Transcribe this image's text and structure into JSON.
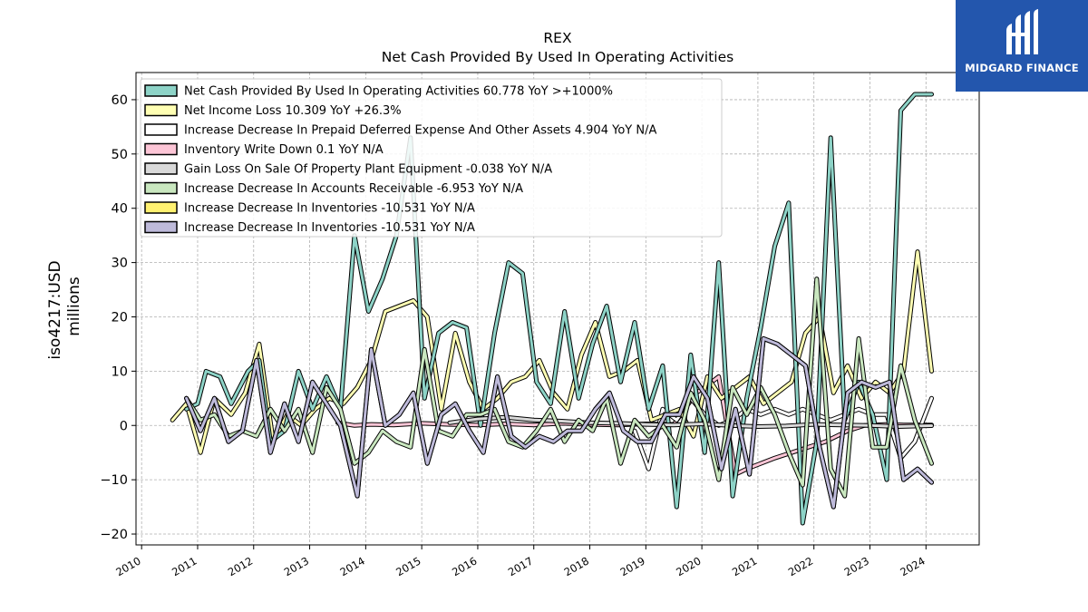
{
  "chart_data": {
    "type": "line",
    "title": "REX",
    "subtitle": "Net Cash Provided By Used In Operating Activities",
    "ylabel": "iso4217:USD",
    "ylabel2": "millions",
    "xlabel": "",
    "ylim": [
      -22,
      65
    ],
    "xlim": [
      2009.9,
      2024.95
    ],
    "y_ticks": [
      -20,
      -10,
      0,
      10,
      20,
      30,
      40,
      50,
      60
    ],
    "x_ticks": [
      2010,
      2011,
      2012,
      2013,
      2014,
      2015,
      2016,
      2017,
      2018,
      2019,
      2020,
      2021,
      2022,
      2023,
      2024
    ],
    "grid": true,
    "legend_position": "top-left",
    "series": [
      {
        "name": "Net Cash Provided By Used In Operating Activities",
        "legend": "Net Cash Provided By Used In Operating Activities  60.778 YoY >+1000%",
        "color": "#8dd3c7",
        "z": 3,
        "x": [
          2010.8,
          2011.0,
          2011.15,
          2011.4,
          2011.6,
          2011.9,
          2012.1,
          2012.3,
          2012.55,
          2012.8,
          2013.05,
          2013.3,
          2013.55,
          2013.8,
          2014.05,
          2014.3,
          2014.55,
          2014.8,
          2015.05,
          2015.3,
          2015.55,
          2015.8,
          2016.05,
          2016.3,
          2016.55,
          2016.8,
          2017.05,
          2017.3,
          2017.55,
          2017.8,
          2018.05,
          2018.3,
          2018.55,
          2018.8,
          2019.05,
          2019.3,
          2019.55,
          2019.8,
          2020.05,
          2020.3,
          2020.55,
          2020.8,
          2021.05,
          2021.3,
          2021.55,
          2021.8,
          2022.05,
          2022.3,
          2022.55,
          2022.8,
          2023.05,
          2023.3,
          2023.55,
          2023.8,
          2024.1
        ],
        "values": [
          3,
          4,
          10,
          9,
          4,
          10,
          12,
          -3,
          -1,
          10,
          3,
          9,
          3,
          35,
          21,
          27,
          35,
          53,
          5,
          17,
          19,
          18,
          0,
          17,
          30,
          28,
          8,
          4,
          21,
          5,
          15,
          22,
          8,
          19,
          3,
          11,
          -15,
          13,
          -5,
          30,
          -13,
          5,
          18,
          33,
          41,
          -18,
          -3,
          53,
          1,
          8,
          2,
          -10,
          58,
          61,
          61
        ]
      },
      {
        "name": "Net Income Loss",
        "legend": "Net Income Loss  10.309 YoY +26.3%",
        "color": "#ffffb3",
        "z": 2,
        "x": [
          2010.55,
          2010.8,
          2011.05,
          2011.3,
          2011.6,
          2011.85,
          2012.1,
          2012.35,
          2012.6,
          2012.85,
          2013.1,
          2013.35,
          2013.6,
          2013.85,
          2014.1,
          2014.35,
          2014.6,
          2014.85,
          2015.1,
          2015.35,
          2015.6,
          2015.85,
          2016.1,
          2016.35,
          2016.6,
          2016.85,
          2017.1,
          2017.35,
          2017.6,
          2017.85,
          2018.1,
          2018.35,
          2018.6,
          2018.85,
          2019.1,
          2019.35,
          2019.6,
          2019.85,
          2020.1,
          2020.35,
          2020.6,
          2020.85,
          2021.1,
          2021.35,
          2021.6,
          2021.85,
          2022.1,
          2022.35,
          2022.6,
          2022.85,
          2023.1,
          2023.35,
          2023.6,
          2023.85,
          2024.1
        ],
        "values": [
          1,
          4,
          -5,
          5,
          2,
          6,
          15,
          -3,
          2,
          0,
          3,
          5,
          4,
          7,
          12,
          21,
          22,
          23,
          20,
          3,
          17,
          8,
          3,
          5,
          8,
          9,
          12,
          6,
          3,
          13,
          19,
          9,
          10,
          12,
          1,
          2,
          3,
          -2,
          9,
          5,
          7,
          9,
          4,
          6,
          8,
          17,
          20,
          6,
          11,
          5,
          8,
          6,
          10,
          32,
          10
        ]
      },
      {
        "name": "Increase Decrease In Prepaid Deferred Expense And Other Assets",
        "legend": "Increase Decrease In Prepaid Deferred Expense And Other Assets  4.904 YoY N/A",
        "color": "#ffffff",
        "z": 1,
        "x": [
          2018.8,
          2019.05,
          2019.3,
          2019.55,
          2019.8,
          2020.05,
          2020.3,
          2020.55,
          2020.8,
          2021.05,
          2021.3,
          2021.55,
          2021.8,
          2022.05,
          2022.3,
          2022.55,
          2022.8,
          2023.05,
          2023.3,
          2023.55,
          2023.8,
          2024.1
        ],
        "values": [
          -1,
          -8,
          3,
          1,
          5,
          2,
          0,
          1,
          3,
          2,
          3,
          2,
          3,
          2,
          1,
          2,
          3,
          2,
          2,
          -6,
          -3,
          5
        ]
      },
      {
        "name": "Inventory Write Down",
        "legend": "Inventory Write Down  0.1 YoY N/A",
        "color": "#fcc5d6",
        "z": 0,
        "x": [
          2013.5,
          2013.8,
          2014.1,
          2014.5,
          2015.0,
          2015.5,
          2016.0,
          2016.5,
          2017.0,
          2017.5,
          2018.0,
          2018.5,
          2019.0,
          2019.5,
          2019.9,
          2020.05,
          2020.3,
          2020.6,
          2020.8,
          2021.05,
          2021.3,
          2021.6,
          2021.9,
          2022.2,
          2022.6,
          2022.9,
          2023.3,
          2023.6,
          2024.1
        ],
        "values": [
          0.5,
          0,
          0.2,
          0.1,
          0.4,
          0.2,
          0.1,
          0.3,
          0.1,
          0.4,
          0.2,
          0.1,
          0.3,
          0.2,
          6,
          7,
          9,
          -9,
          -8,
          -7,
          -6,
          -5,
          -4,
          -3,
          -1,
          0,
          0.2,
          0.1,
          0.1
        ]
      },
      {
        "name": "Gain Loss On Sale Of Property Plant Equipment",
        "legend": "Gain Loss On Sale Of Property Plant Equipment  -0.038 YoY N/A",
        "color": "#d9d9d9",
        "z": 4,
        "x": [
          2015.5,
          2016.0,
          2016.5,
          2017.0,
          2017.5,
          2018.0,
          2018.5,
          2019.0,
          2019.5,
          2020.0,
          2020.5,
          2021.0,
          2021.5,
          2022.0,
          2022.5,
          2023.0,
          2023.5,
          2024.1
        ],
        "values": [
          0.5,
          1.2,
          1.5,
          1.0,
          0.8,
          0.5,
          0.4,
          0.2,
          0.1,
          0.3,
          0.0,
          -0.2,
          -0.1,
          0.2,
          0.1,
          0.0,
          -0.2,
          -0.04
        ]
      },
      {
        "name": "Increase Decrease In Accounts Receivable",
        "legend": "Increase Decrease In Accounts Receivable  -6.953 YoY N/A",
        "color": "#c9e7bf",
        "z": 5,
        "x": [
          2010.8,
          2011.05,
          2011.3,
          2011.55,
          2011.8,
          2012.05,
          2012.3,
          2012.55,
          2012.8,
          2013.05,
          2013.3,
          2013.55,
          2013.8,
          2014.05,
          2014.3,
          2014.55,
          2014.8,
          2015.05,
          2015.3,
          2015.55,
          2015.8,
          2016.05,
          2016.3,
          2016.55,
          2016.8,
          2017.05,
          2017.3,
          2017.55,
          2017.8,
          2018.05,
          2018.3,
          2018.55,
          2018.8,
          2019.05,
          2019.3,
          2019.55,
          2019.8,
          2020.05,
          2020.3,
          2020.55,
          2020.8,
          2021.05,
          2021.3,
          2021.55,
          2021.8,
          2022.05,
          2022.3,
          2022.55,
          2022.8,
          2023.05,
          2023.3,
          2023.55,
          2023.8,
          2024.1
        ],
        "values": [
          5,
          1,
          2,
          -2,
          -1,
          -2,
          3,
          -1,
          3,
          -5,
          7,
          3,
          -7,
          -5,
          -1,
          -3,
          -4,
          14,
          -1,
          -2,
          2,
          2,
          3,
          -3,
          -4,
          -1,
          3,
          -3,
          1,
          -1,
          5,
          -7,
          1,
          -2,
          0,
          -4,
          6,
          1,
          -10,
          7,
          2,
          7,
          2,
          -5,
          -11,
          27,
          -8,
          -13,
          16,
          -4,
          -4,
          11,
          1,
          -7
        ]
      },
      {
        "name": "Increase Decrease In Inventories",
        "legend": "Increase Decrease In Inventories  -10.531 YoY N/A",
        "color": "#fff170",
        "z": 6,
        "x": [
          2010.8,
          2011.05,
          2011.3,
          2011.55,
          2011.8,
          2012.05,
          2012.3,
          2012.55,
          2012.8,
          2013.05,
          2013.3,
          2013.55,
          2013.85,
          2014.1,
          2014.35,
          2014.6,
          2014.85,
          2015.1,
          2015.35,
          2015.6,
          2015.85,
          2016.1,
          2016.35,
          2016.6,
          2016.85,
          2017.1,
          2017.35,
          2017.6,
          2017.85,
          2018.1,
          2018.35,
          2018.6,
          2018.85,
          2019.1,
          2019.35,
          2019.6,
          2019.85,
          2020.1,
          2020.35,
          2020.6,
          2020.85,
          2021.1,
          2021.35,
          2021.6,
          2021.85,
          2022.1,
          2022.35,
          2022.6,
          2022.85,
          2023.1,
          2023.35,
          2023.6,
          2023.85,
          2024.1
        ],
        "values": [
          5,
          -1,
          5,
          -3,
          -1,
          12,
          -5,
          4,
          -3,
          8,
          4,
          0,
          -13,
          14,
          0,
          2,
          6,
          -7,
          2,
          4,
          -1,
          -5,
          9,
          -2,
          -4,
          -2,
          -3,
          -1,
          -1,
          3,
          6,
          -1,
          -3,
          -3,
          2,
          2,
          9,
          5,
          -8,
          3,
          -9,
          16,
          15,
          13,
          11,
          -4,
          -15,
          6,
          8,
          7,
          8,
          -10,
          -8,
          -10.5
        ]
      },
      {
        "name": "Increase Decrease In Inventories",
        "legend": "Increase Decrease In Inventories  -10.531 YoY N/A",
        "color": "#bebada",
        "z": 7,
        "x": [
          2010.8,
          2011.05,
          2011.3,
          2011.55,
          2011.8,
          2012.05,
          2012.3,
          2012.55,
          2012.8,
          2013.05,
          2013.3,
          2013.55,
          2013.85,
          2014.1,
          2014.35,
          2014.6,
          2014.85,
          2015.1,
          2015.35,
          2015.6,
          2015.85,
          2016.1,
          2016.35,
          2016.6,
          2016.85,
          2017.1,
          2017.35,
          2017.6,
          2017.85,
          2018.1,
          2018.35,
          2018.6,
          2018.85,
          2019.1,
          2019.35,
          2019.6,
          2019.85,
          2020.1,
          2020.35,
          2020.6,
          2020.85,
          2021.1,
          2021.35,
          2021.6,
          2021.85,
          2022.1,
          2022.35,
          2022.6,
          2022.85,
          2023.1,
          2023.35,
          2023.6,
          2023.85,
          2024.1
        ],
        "values": [
          5,
          -1,
          5,
          -3,
          -1,
          12,
          -5,
          4,
          -3,
          8,
          4,
          0,
          -13,
          14,
          0,
          2,
          6,
          -7,
          2,
          4,
          -1,
          -5,
          9,
          -2,
          -4,
          -2,
          -3,
          -1,
          -1,
          3,
          6,
          -1,
          -3,
          -3,
          2,
          2,
          9,
          5,
          -8,
          3,
          -9,
          16,
          15,
          13,
          11,
          -4,
          -15,
          6,
          8,
          7,
          8,
          -10,
          -8,
          -10.5
        ]
      }
    ]
  },
  "logo": {
    "text": "MIDGARD FINANCE",
    "background": "#2356ad"
  }
}
